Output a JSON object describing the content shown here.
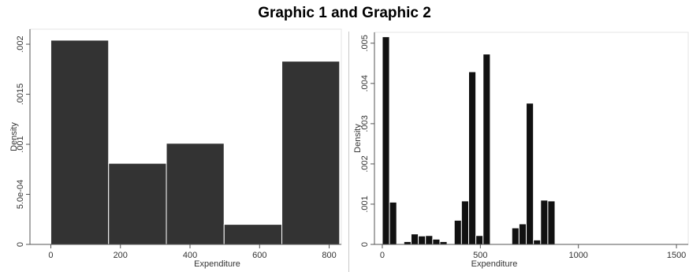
{
  "title": "Graphic 1 and Graphic 2",
  "chart_data": [
    {
      "type": "bar",
      "subtype": "histogram",
      "xlabel": "Expenditure",
      "ylabel": "Density",
      "xlim": [
        -60,
        835
      ],
      "ylim": [
        0,
        0.00215
      ],
      "xticks": [
        0,
        200,
        400,
        600,
        800
      ],
      "yticks": [
        {
          "value": 0,
          "label": "0"
        },
        {
          "value": 0.0005,
          "label": "5.0e-04"
        },
        {
          "value": 0.001,
          "label": ".001"
        },
        {
          "value": 0.0015,
          "label": ".0015"
        },
        {
          "value": 0.002,
          "label": ".002"
        }
      ],
      "bins": [
        {
          "x0": 0,
          "x1": 166,
          "value": 0.00204
        },
        {
          "x0": 166,
          "x1": 332,
          "value": 0.00081
        },
        {
          "x0": 332,
          "x1": 498,
          "value": 0.00101
        },
        {
          "x0": 498,
          "x1": 664,
          "value": 0.0002
        },
        {
          "x0": 664,
          "x1": 830,
          "value": 0.00183
        }
      ],
      "bar_color": "#333333",
      "grid": false
    },
    {
      "type": "bar",
      "subtype": "histogram",
      "xlabel": "Expenditure",
      "ylabel": "Density",
      "xlim": [
        -40,
        1560
      ],
      "ylim": [
        0,
        0.00527
      ],
      "xticks": [
        0,
        500,
        1000,
        1500
      ],
      "yticks": [
        {
          "value": 0,
          "label": "0"
        },
        {
          "value": 0.001,
          "label": ".001"
        },
        {
          "value": 0.002,
          "label": ".002"
        },
        {
          "value": 0.003,
          "label": ".003"
        },
        {
          "value": 0.004,
          "label": ".004"
        },
        {
          "value": 0.005,
          "label": ".005"
        }
      ],
      "bin_width": 36.7,
      "bin_start": 0,
      "values": [
        0.00516,
        0.00105,
        0.0,
        7e-05,
        0.00026,
        0.00021,
        0.00022,
        0.00013,
        7e-05,
        0.0,
        0.0006,
        0.00108,
        0.00429,
        0.00022,
        0.00473,
        0.0,
        0.0,
        0.0,
        0.00041,
        0.00051,
        0.00351,
        0.00011,
        0.0011,
        0.00108,
        0.0,
        0.0,
        1e-05,
        0.0,
        1e-05,
        0.0,
        0.0,
        0.0,
        0.0,
        0.0,
        0.0,
        0.0,
        0.0,
        1e-05,
        0.0,
        0.0,
        0.0,
        1e-05
      ],
      "bar_color": "#111111",
      "grid": false
    }
  ]
}
